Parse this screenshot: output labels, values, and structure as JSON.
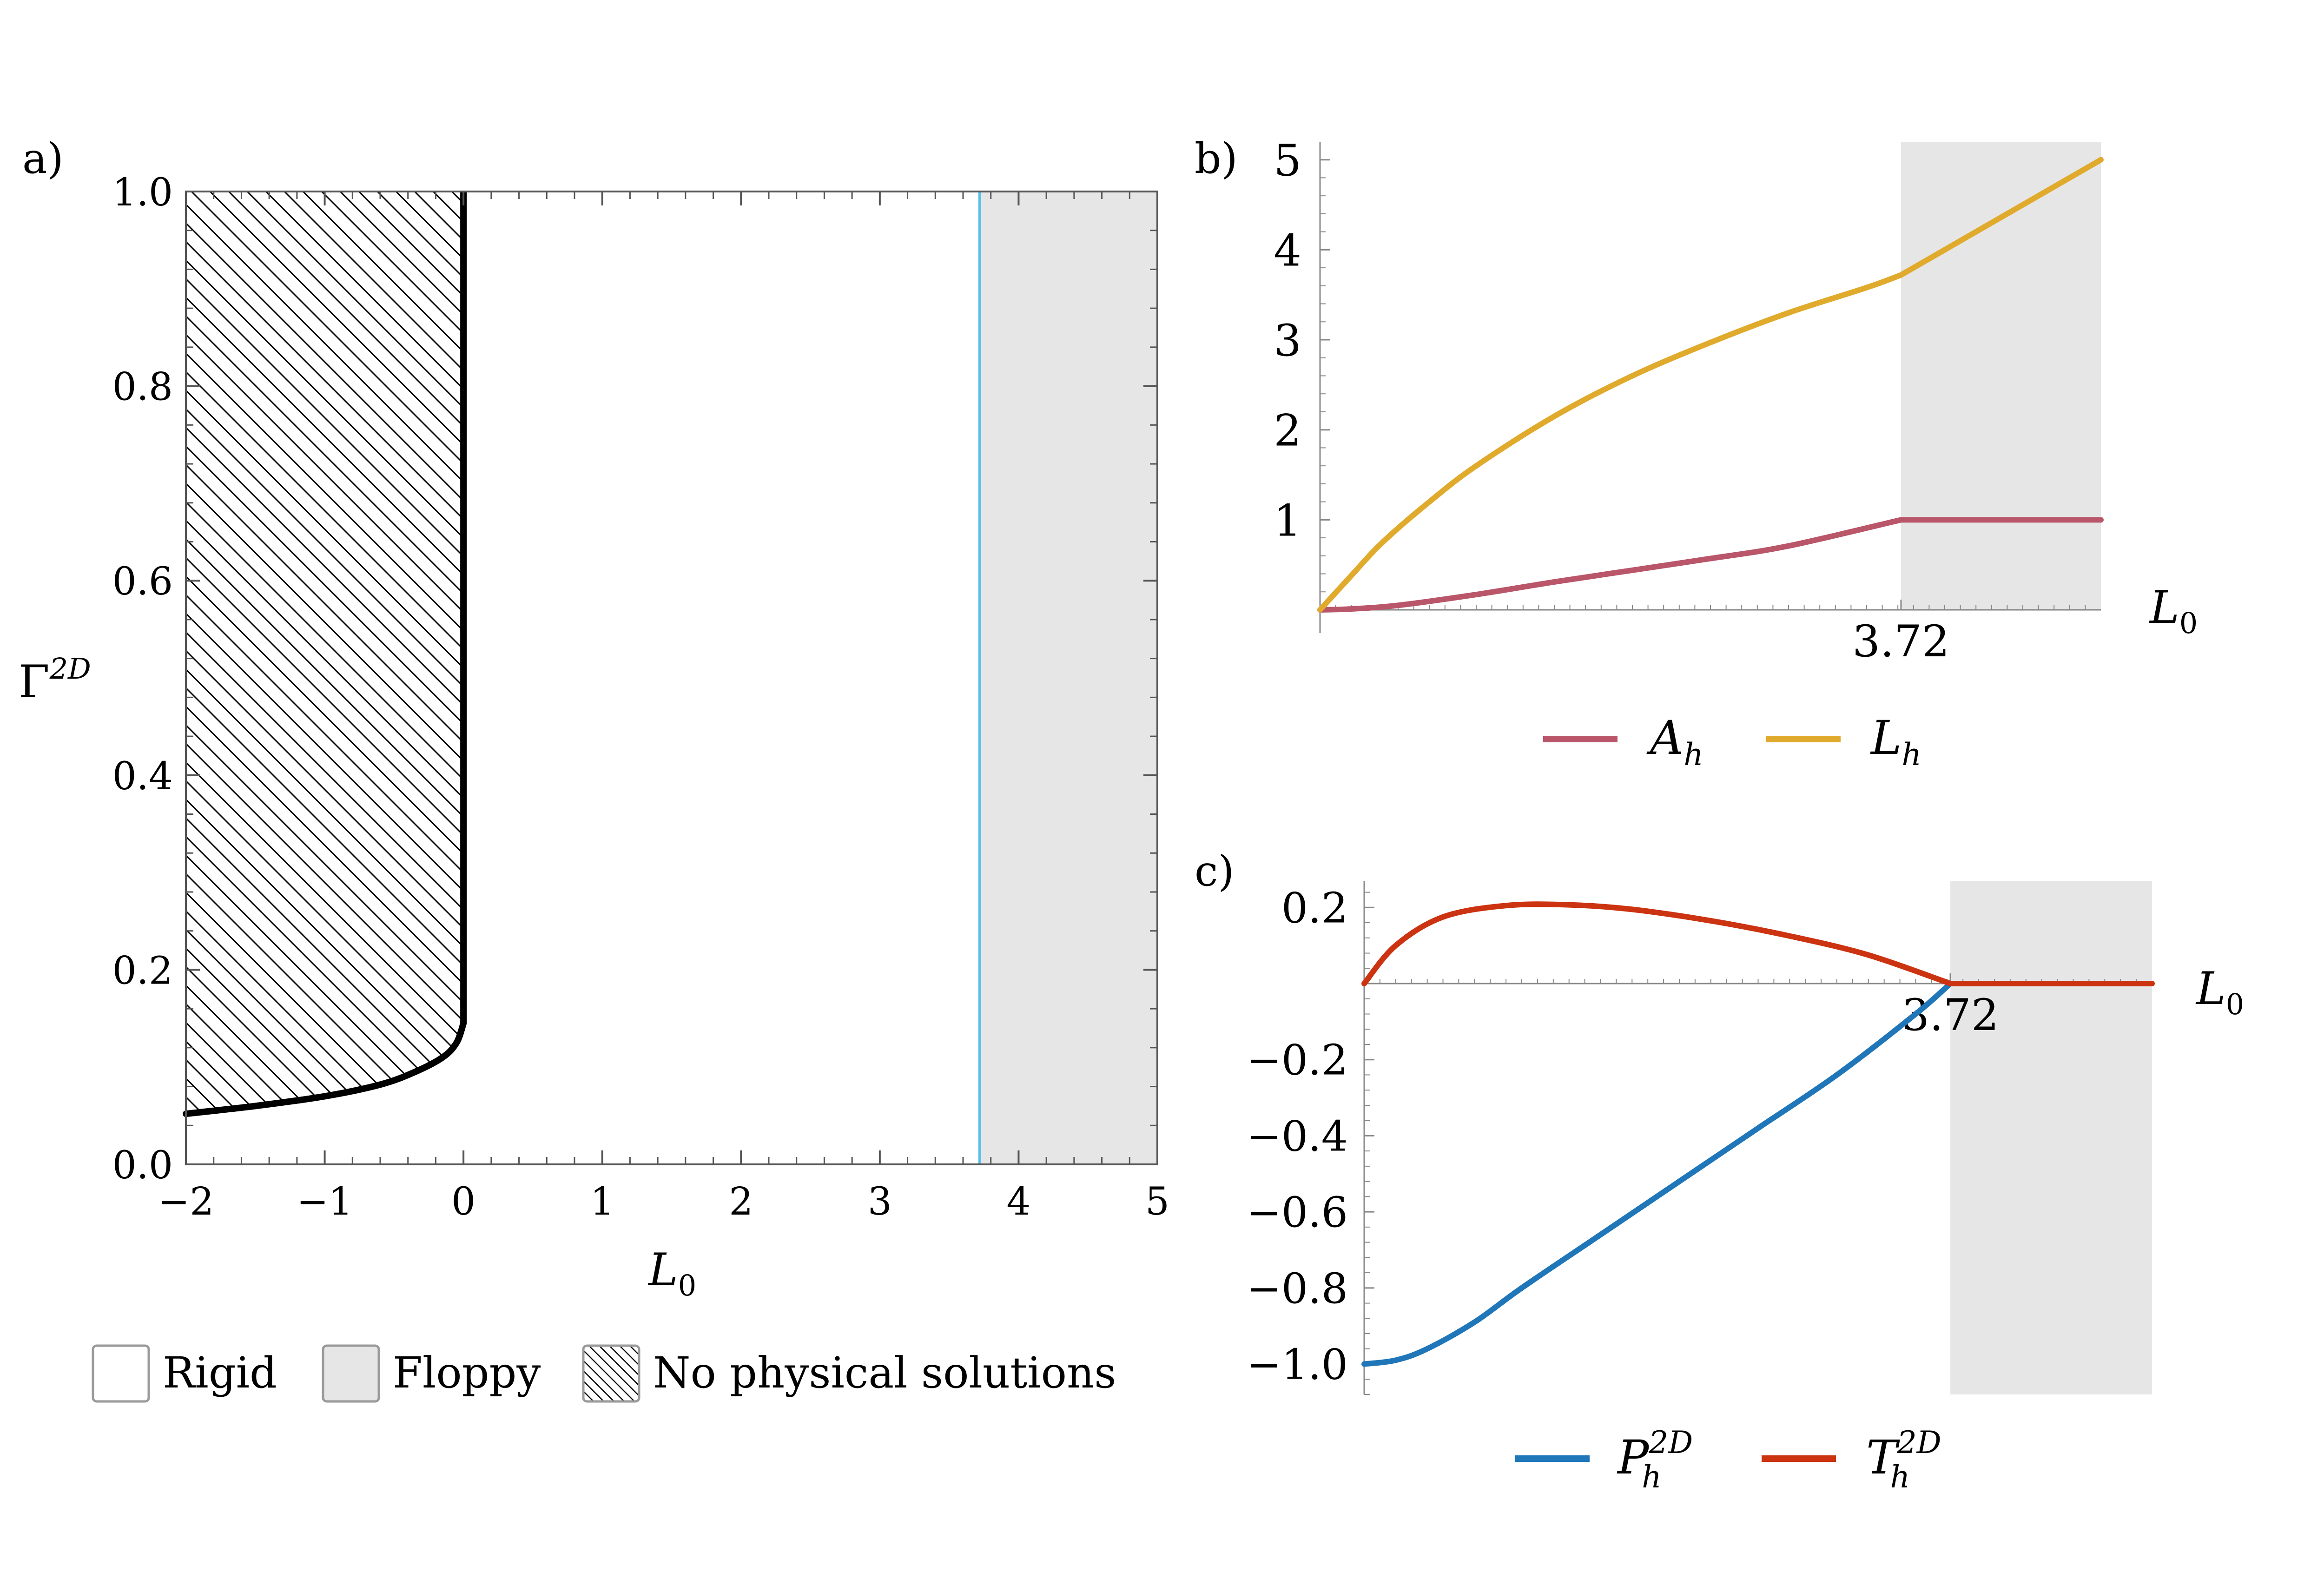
{
  "panels": {
    "a": {
      "label": "a)",
      "type": "region",
      "xlabel": "L",
      "xlabel_sub": "0",
      "ylabel": "Γ",
      "ylabel_sup": "2D",
      "xlim": [
        -2,
        5
      ],
      "ylim": [
        0,
        1.0
      ],
      "xticks": [
        -2,
        -1,
        0,
        1,
        2,
        3,
        4,
        5
      ],
      "xtick_labels": [
        "−2",
        "−1",
        "0",
        "1",
        "2",
        "3",
        "4",
        "5"
      ],
      "yticks": [
        0,
        0.2,
        0.4,
        0.6,
        0.8,
        1.0
      ],
      "ytick_labels": [
        "0.0",
        "0.2",
        "0.4",
        "0.6",
        "0.8",
        "1.0"
      ],
      "boundary_curve": {
        "x": [
          -2,
          -1.5,
          -1.0,
          -0.6,
          -0.35,
          -0.15,
          -0.05,
          0
        ],
        "y": [
          0.052,
          0.06,
          0.07,
          0.082,
          0.095,
          0.11,
          0.125,
          0.145
        ],
        "color": "#000000"
      },
      "vertical_boundary_x": 0,
      "transition_line": {
        "x": 3.72,
        "color": "#5bc0e8"
      },
      "floppy_region": {
        "x": [
          3.72,
          5
        ],
        "color": "#e6e6e6"
      },
      "hatched_region": {
        "x": [
          -2,
          0
        ]
      }
    },
    "b": {
      "label": "b)",
      "type": "line",
      "xlabel": "L",
      "xlabel_sub": "0",
      "xlim": [
        0,
        5
      ],
      "ylim": [
        0,
        5.2
      ],
      "yticks": [
        1,
        2,
        3,
        4,
        5
      ],
      "ytick_labels": [
        "1",
        "2",
        "3",
        "4",
        "5"
      ],
      "xticks": [
        3.72
      ],
      "xtick_labels": [
        "3.72"
      ],
      "shaded": {
        "x": [
          3.72,
          5
        ],
        "color": "#e6e6e6"
      },
      "series": [
        {
          "name": "A",
          "name_sub": "h",
          "color": "#b9566a",
          "x": [
            0,
            0.2,
            0.5,
            1.0,
            1.5,
            2.0,
            2.5,
            3.0,
            3.72,
            5
          ],
          "y": [
            0,
            0.01,
            0.05,
            0.17,
            0.31,
            0.44,
            0.57,
            0.71,
            1.0,
            1.0
          ]
        },
        {
          "name": "L",
          "name_sub": "h",
          "color": "#e0ab2c",
          "x": [
            0,
            0.2,
            0.4,
            0.7,
            1.0,
            1.5,
            2.0,
            2.5,
            3.0,
            3.5,
            3.72,
            5
          ],
          "y": [
            0,
            0.38,
            0.75,
            1.2,
            1.6,
            2.15,
            2.6,
            2.97,
            3.3,
            3.58,
            3.72,
            5.0
          ]
        }
      ]
    },
    "c": {
      "label": "c)",
      "type": "line",
      "xlabel": "L",
      "xlabel_sub": "0",
      "xlim": [
        0,
        5
      ],
      "ylim": [
        -1.08,
        0.27
      ],
      "yticks": [
        0.2,
        -0.2,
        -0.4,
        -0.6,
        -0.8,
        -1.0
      ],
      "ytick_labels": [
        "0.2",
        "−0.2",
        "−0.4",
        "−0.6",
        "−0.8",
        "−1.0"
      ],
      "xticks": [
        3.72
      ],
      "xtick_labels": [
        "3.72"
      ],
      "shaded": {
        "x": [
          3.72,
          5
        ],
        "color": "#e6e6e6"
      },
      "series": [
        {
          "name": "P",
          "name_sub": "h",
          "name_sup": "2D",
          "color": "#1f77b9",
          "x": [
            0,
            0.2,
            0.4,
            0.7,
            1.0,
            1.5,
            2.0,
            2.5,
            3.0,
            3.5,
            3.72
          ],
          "y": [
            -1.0,
            -0.99,
            -0.96,
            -0.89,
            -0.8,
            -0.66,
            -0.52,
            -0.38,
            -0.24,
            -0.08,
            0
          ]
        },
        {
          "name": "T",
          "name_sub": "h",
          "name_sup": "2D",
          "color": "#cc3311",
          "x": [
            0,
            0.2,
            0.5,
            0.9,
            1.3,
            1.7,
            2.2,
            2.7,
            3.2,
            3.72,
            5
          ],
          "y": [
            0,
            0.1,
            0.175,
            0.205,
            0.207,
            0.195,
            0.165,
            0.125,
            0.075,
            0,
            0
          ]
        }
      ]
    }
  },
  "legend_a": [
    {
      "label": "Rigid",
      "swatch": "#ffffff"
    },
    {
      "label": "Floppy",
      "swatch": "#e6e6e6"
    },
    {
      "label": "No physical solutions",
      "swatch": "hatch"
    }
  ]
}
